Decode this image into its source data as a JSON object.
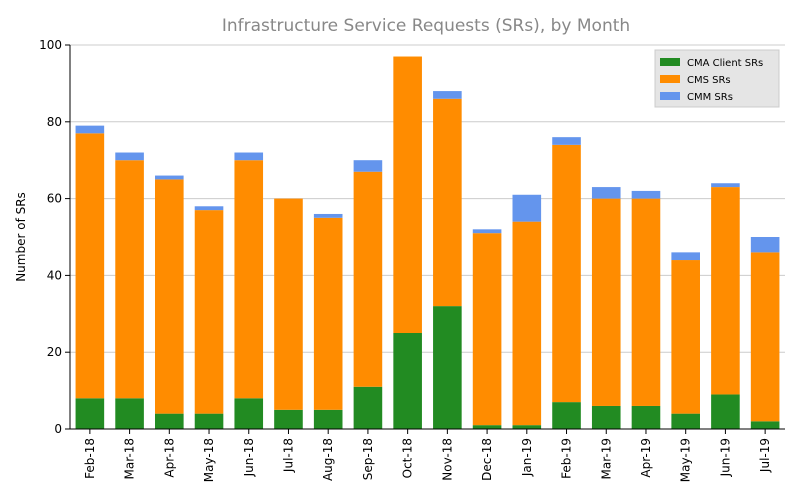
{
  "chart_data": {
    "type": "bar",
    "stacked": true,
    "title": "Infrastructure Service Requests (SRs), by Month",
    "xlabel": "",
    "ylabel": "Number of SRs",
    "ylim": [
      0,
      100
    ],
    "yticks": [
      0,
      20,
      40,
      60,
      80,
      100
    ],
    "grid": "horizontal",
    "legend_position": "top-right",
    "categories": [
      "Feb-18",
      "Mar-18",
      "Apr-18",
      "May-18",
      "Jun-18",
      "Jul-18",
      "Aug-18",
      "Sep-18",
      "Oct-18",
      "Nov-18",
      "Dec-18",
      "Jan-19",
      "Feb-19",
      "Mar-19",
      "Apr-19",
      "May-19",
      "Jun-19",
      "Jul-19"
    ],
    "series": [
      {
        "name": "CMA Client SRs",
        "color": "#228b22",
        "values": [
          8,
          8,
          4,
          4,
          8,
          5,
          5,
          11,
          25,
          32,
          1,
          1,
          7,
          6,
          6,
          4,
          9,
          2
        ]
      },
      {
        "name": "CMS SRs",
        "color": "#ff8c00",
        "values": [
          69,
          62,
          61,
          53,
          62,
          55,
          50,
          56,
          72,
          54,
          50,
          53,
          67,
          54,
          54,
          40,
          54,
          44
        ]
      },
      {
        "name": "CMM SRs",
        "color": "#6495ed",
        "values": [
          2,
          2,
          1,
          1,
          2,
          0,
          1,
          3,
          0,
          2,
          1,
          7,
          2,
          3,
          2,
          2,
          1,
          4
        ]
      }
    ]
  }
}
